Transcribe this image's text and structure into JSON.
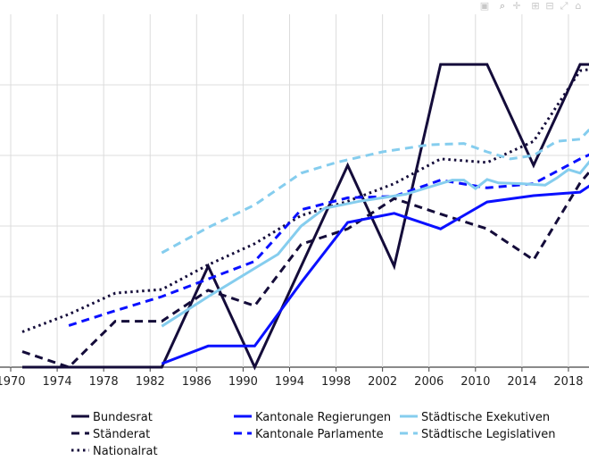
{
  "toolbar": {
    "icons": [
      "camera-icon",
      "zoom-icon",
      "pan-icon",
      "zoom-in-icon",
      "zoom-out-icon",
      "autoscale-icon",
      "home-icon"
    ]
  },
  "chart_data": {
    "type": "line",
    "title": "",
    "xlabel": "",
    "ylabel": "",
    "xlim": [
      1969.8,
      2020.2
    ],
    "ylim": [
      0,
      50
    ],
    "y_unit": "percent (estimated; y tick labels not visible)",
    "grid": true,
    "x_ticks": [
      "1970",
      "1974",
      "1978",
      "1982",
      "1986",
      "1990",
      "1994",
      "1998",
      "2002",
      "2006",
      "2010",
      "2014",
      "2018"
    ],
    "y_grid": [
      0,
      10,
      20,
      30,
      40
    ],
    "legend_placement": "bottom",
    "series": [
      {
        "name": "Bundesrat",
        "color": "#140c3a",
        "dash": "solid",
        "x": [
          1971,
          1983,
          1987,
          1991,
          1999,
          2003,
          2007,
          2011,
          2015,
          2019,
          2021
        ],
        "y": [
          0,
          0,
          14.3,
          0,
          28.6,
          14.3,
          42.9,
          42.9,
          28.6,
          42.9,
          42.9
        ]
      },
      {
        "name": "Ständerat",
        "color": "#140c3a",
        "dash": "dash",
        "x": [
          1971,
          1975,
          1979,
          1983,
          1987,
          1991,
          1995,
          1999,
          2003,
          2007,
          2011,
          2015,
          2019,
          2021
        ],
        "y": [
          2.2,
          0,
          6.5,
          6.5,
          10.9,
          8.7,
          17.4,
          19.6,
          23.9,
          21.7,
          19.6,
          15.2,
          26.1,
          30
        ]
      },
      {
        "name": "Nationalrat",
        "color": "#140c3a",
        "dash": "dot",
        "x": [
          1971,
          1975,
          1979,
          1983,
          1987,
          1991,
          1995,
          1999,
          2003,
          2007,
          2011,
          2015,
          2019,
          2021
        ],
        "y": [
          5,
          7.5,
          10.5,
          11,
          14.5,
          17.5,
          21.5,
          23.5,
          26,
          29.5,
          29,
          32,
          42,
          42.5
        ]
      },
      {
        "name": "Kantonale Regierungen",
        "color": "#0a10ff",
        "dash": "solid",
        "x": [
          1983,
          1987,
          1991,
          1995,
          1999,
          2003,
          2007,
          2011,
          2015,
          2019,
          2021
        ],
        "y": [
          0.5,
          3,
          3,
          12,
          20.5,
          21.8,
          19.6,
          23.4,
          24.3,
          24.8,
          27
        ]
      },
      {
        "name": "Kantonale Parlamente",
        "color": "#0a10ff",
        "dash": "dash",
        "x": [
          1975,
          1979,
          1983,
          1987,
          1991,
          1995,
          1999,
          2003,
          2007,
          2011,
          2015,
          2019,
          2021
        ],
        "y": [
          5.9,
          8,
          10,
          12.5,
          15,
          22.3,
          24,
          24.2,
          26.5,
          25.4,
          26,
          29.5,
          31
        ]
      },
      {
        "name": "Städtische Exekutiven",
        "color": "#85cdee",
        "dash": "solid",
        "x": [
          1983,
          1987,
          1991,
          1993,
          1995,
          1997,
          2000,
          2002,
          2004,
          2006,
          2008,
          2009,
          2010,
          2011,
          2012,
          2014,
          2016,
          2017,
          2018,
          2019,
          2020,
          2021
        ],
        "y": [
          5.8,
          10,
          14,
          16,
          20,
          22.5,
          23.5,
          24,
          24.5,
          25.5,
          26.5,
          26.5,
          25.3,
          26.6,
          26.1,
          26,
          25.8,
          26.8,
          28,
          27.5,
          29.5,
          31
        ]
      },
      {
        "name": "Städtische Legislativen",
        "color": "#85cdee",
        "dash": "dash",
        "x": [
          1983,
          1987,
          1991,
          1995,
          1998,
          2002,
          2006,
          2009,
          2011,
          2013,
          2015,
          2017,
          2019,
          2020,
          2021
        ],
        "y": [
          16.2,
          19.8,
          23,
          27.5,
          29,
          30.5,
          31.5,
          31.7,
          30.5,
          29.5,
          30,
          32,
          32.3,
          34,
          36
        ]
      }
    ]
  }
}
